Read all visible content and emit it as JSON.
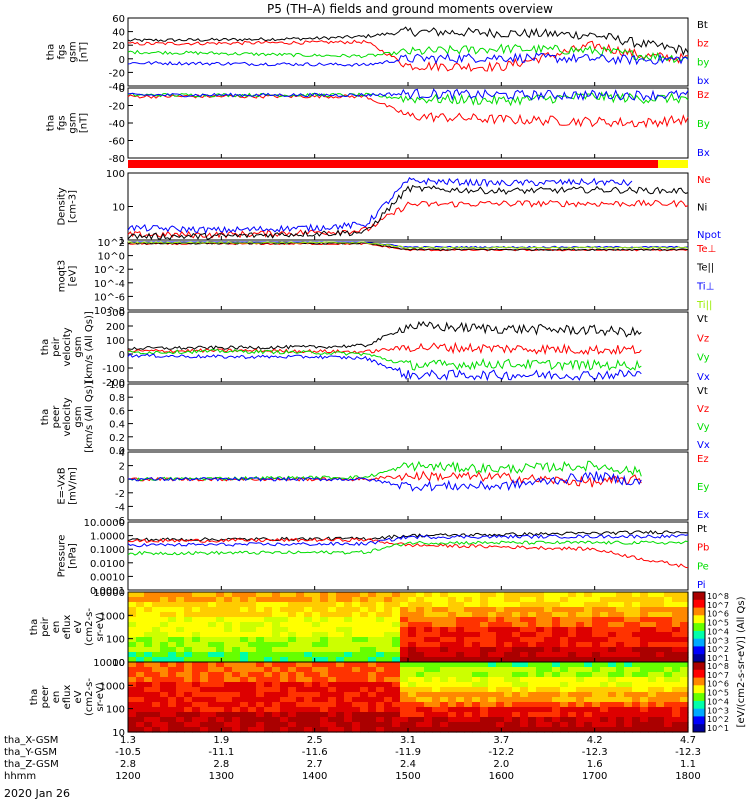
{
  "figure": {
    "title": "P5 (TH–A) fields and ground moments overview",
    "date": "2020 Jan 26"
  },
  "colors": {
    "black": "#000000",
    "red": "#ff0000",
    "green": "#00dd00",
    "blue": "#0000ff",
    "yellow": "#ffff00",
    "lightgreen": "#99ee00",
    "bar_red": "#ff0000",
    "bar_yellow": "#ffff00"
  },
  "chart_data": [
    {
      "type": "line",
      "id": "fgs",
      "ylabel": [
        "tha",
        "fgs",
        "gsm",
        "[nT]"
      ],
      "ylim": [
        -40,
        60
      ],
      "yticks": [
        "60",
        "40",
        "20",
        "0",
        "-20",
        "-40"
      ],
      "series": [
        {
          "name": "Bt",
          "color": "black",
          "x": [
            1200,
            1300,
            1400,
            1440,
            1455,
            1500,
            1600,
            1700,
            1750,
            1800
          ],
          "y": [
            27,
            28,
            30,
            32,
            33,
            40,
            38,
            35,
            22,
            12
          ]
        },
        {
          "name": "bz",
          "color": "red",
          "x": [
            1200,
            1300,
            1400,
            1455,
            1500,
            1600,
            1700,
            1750,
            1800
          ],
          "y": [
            22,
            23,
            24,
            25,
            -10,
            -12,
            20,
            5,
            0
          ]
        },
        {
          "name": "by",
          "color": "green",
          "x": [
            1200,
            1300,
            1400,
            1455,
            1500,
            1600,
            1700,
            1750,
            1800
          ],
          "y": [
            10,
            8,
            5,
            4,
            10,
            15,
            12,
            5,
            0
          ]
        },
        {
          "name": "bx",
          "color": "blue",
          "x": [
            1200,
            1300,
            1400,
            1455,
            1500,
            1600,
            1700,
            1750,
            1800
          ],
          "y": [
            -6,
            -7,
            -8,
            -9,
            0,
            2,
            0,
            -2,
            0
          ]
        }
      ]
    },
    {
      "type": "line",
      "id": "fgs_gsm",
      "ylabel": [
        "tha",
        "fgs",
        "gsm",
        "[nT]"
      ],
      "ylim": [
        -90,
        10
      ],
      "yticks": [
        "0",
        "-20",
        "-40",
        "-60",
        "-80"
      ],
      "series": [
        {
          "name": "Bz",
          "color": "red",
          "x": [
            1200,
            1300,
            1400,
            1455,
            1500,
            1600,
            1700,
            1750,
            1800
          ],
          "y": [
            -2,
            -2,
            -2,
            -2,
            -30,
            -35,
            -38,
            -40,
            -35
          ]
        },
        {
          "name": "By",
          "color": "green",
          "x": [
            1200,
            1300,
            1400,
            1455,
            1500,
            1600,
            1700,
            1750,
            1800
          ],
          "y": [
            0,
            0,
            0,
            0,
            -5,
            -8,
            -2,
            -5,
            -5
          ]
        },
        {
          "name": "Bx",
          "color": "blue",
          "x": [
            1200,
            1300,
            1400,
            1455,
            1500,
            1600,
            1700,
            1750,
            1800
          ],
          "y": [
            0,
            0,
            0,
            0,
            2,
            0,
            0,
            0,
            0
          ]
        }
      ]
    },
    {
      "type": "line",
      "id": "density",
      "ylabel": [
        "Density",
        "[cm-3]"
      ],
      "yscale": "log",
      "ylim": [
        0.5,
        200
      ],
      "yticks": [
        "100",
        "10",
        "1"
      ],
      "series": [
        {
          "name": "Ne",
          "color": "red",
          "x": [
            1200,
            1300,
            1400,
            1455,
            1500,
            1600,
            1700,
            1800
          ],
          "y": [
            0.8,
            0.8,
            1.0,
            1.2,
            12,
            13,
            13,
            13
          ]
        },
        {
          "name": "Ni",
          "color": "black",
          "x": [
            1200,
            1300,
            1400,
            1455,
            1500,
            1600,
            1700,
            1800
          ],
          "y": [
            0.7,
            0.7,
            0.9,
            1.0,
            50,
            40,
            45,
            40
          ]
        },
        {
          "name": "Npot",
          "color": "blue",
          "x": [
            1200,
            1300,
            1400,
            1455,
            1500,
            1600,
            1700,
            1740
          ],
          "y": [
            1.5,
            1.2,
            1.5,
            2,
            100,
            80,
            90,
            80
          ]
        }
      ]
    },
    {
      "type": "line",
      "id": "temperature",
      "ylabel": [
        "moqt3",
        "[eV]"
      ],
      "yscale": "log",
      "ylim": [
        1e-08,
        1000.0
      ],
      "yticks": [
        "10^2",
        "10^0",
        "10^-2",
        "10^-4",
        "10^-6",
        "10^-8"
      ],
      "series": [
        {
          "name": "Te⊥",
          "color": "red",
          "x": [
            1200,
            1455,
            1500,
            1800
          ],
          "y": [
            500,
            500,
            50,
            50
          ]
        },
        {
          "name": "Te||",
          "color": "black",
          "x": [
            1200,
            1455,
            1500,
            1800
          ],
          "y": [
            600,
            600,
            60,
            60
          ]
        },
        {
          "name": "Ti⊥",
          "color": "blue",
          "x": [
            1200,
            1455,
            1500,
            1800
          ],
          "y": [
            1000,
            1000,
            150,
            150
          ]
        },
        {
          "name": "Ti||",
          "color": "lightgreen",
          "x": [
            1200,
            1455,
            1500,
            1800
          ],
          "y": [
            800,
            800,
            120,
            120
          ]
        }
      ]
    },
    {
      "type": "line",
      "id": "velocity_peir",
      "ylabel": [
        "tha",
        "peir",
        "velocity",
        "gsm",
        "[km/s (All Qs)]"
      ],
      "ylim": [
        -200,
        300
      ],
      "yticks": [
        "300",
        "200",
        "100",
        "0",
        "-100",
        "-200"
      ],
      "series": [
        {
          "name": "Vt",
          "color": "black",
          "x": [
            1200,
            1300,
            1400,
            1455,
            1500,
            1600,
            1700,
            1750
          ],
          "y": [
            40,
            45,
            50,
            60,
            200,
            180,
            170,
            150
          ]
        },
        {
          "name": "Vz",
          "color": "red",
          "x": [
            1200,
            1300,
            1400,
            1455,
            1500,
            1600,
            1700,
            1750
          ],
          "y": [
            20,
            25,
            20,
            15,
            50,
            40,
            30,
            30
          ]
        },
        {
          "name": "Vy",
          "color": "green",
          "x": [
            1200,
            1300,
            1400,
            1455,
            1500,
            1600,
            1700,
            1750
          ],
          "y": [
            10,
            20,
            10,
            0,
            -80,
            -70,
            -80,
            -80
          ]
        },
        {
          "name": "Vx",
          "color": "blue",
          "x": [
            1200,
            1300,
            1400,
            1455,
            1500,
            1600,
            1700,
            1750
          ],
          "y": [
            -10,
            -20,
            -20,
            -30,
            -150,
            -150,
            -150,
            -140
          ]
        }
      ]
    },
    {
      "type": "line",
      "id": "velocity_peer",
      "ylabel": [
        "tha",
        "peer",
        "velocity",
        "gsm",
        "[km/s (All Qs)]"
      ],
      "ylim": [
        0,
        1
      ],
      "yticks": [
        "1.0",
        "0.8",
        "0.6",
        "0.4",
        "0.2",
        "0.0"
      ],
      "legend": [
        "Vt",
        "Vz",
        "Vy",
        "Vx"
      ],
      "series": []
    },
    {
      "type": "line",
      "id": "efield",
      "ylabel": [
        "E=-VxB",
        "[mV/m]"
      ],
      "ylim": [
        -6,
        4
      ],
      "yticks": [
        "4",
        "2",
        "0",
        "-2",
        "-4",
        "-6"
      ],
      "series": [
        {
          "name": "Ez",
          "color": "red",
          "x": [
            1200,
            1455,
            1500,
            1600,
            1700,
            1750
          ],
          "y": [
            0,
            0,
            0.5,
            0.3,
            -0.5,
            0
          ]
        },
        {
          "name": "Ey",
          "color": "green",
          "x": [
            1200,
            1455,
            1500,
            1600,
            1700,
            1750
          ],
          "y": [
            0,
            0.3,
            2,
            1.5,
            2,
            1
          ]
        },
        {
          "name": "Ex",
          "color": "blue",
          "x": [
            1200,
            1455,
            1500,
            1600,
            1700,
            1750
          ],
          "y": [
            0,
            0,
            -1,
            -1,
            0.5,
            -0.5
          ]
        }
      ]
    },
    {
      "type": "line",
      "id": "pressure",
      "ylabel": [
        "Pressure",
        "[nPa]"
      ],
      "yscale": "log",
      "ylim": [
        0.0001,
        10
      ],
      "yticks": [
        "10.0000",
        "1.0000",
        "0.1000",
        "0.0100",
        "0.0010",
        "0.0001"
      ],
      "series": [
        {
          "name": "Pt",
          "color": "black",
          "x": [
            1200,
            1455,
            1500,
            1600,
            1700,
            1800
          ],
          "y": [
            0.5,
            0.6,
            1.0,
            1.2,
            1.5,
            2.0
          ]
        },
        {
          "name": "Pb",
          "color": "red",
          "x": [
            1200,
            1455,
            1500,
            1600,
            1700,
            1750,
            1800
          ],
          "y": [
            0.4,
            0.5,
            0.2,
            0.15,
            0.1,
            0.02,
            0.005
          ]
        },
        {
          "name": "Pe",
          "color": "green",
          "x": [
            1200,
            1455,
            1500,
            1800
          ],
          "y": [
            0.05,
            0.06,
            0.3,
            0.3
          ]
        },
        {
          "name": "Pi",
          "color": "blue",
          "x": [
            1200,
            1455,
            1500,
            1800
          ],
          "y": [
            0.2,
            0.25,
            0.8,
            0.9
          ]
        }
      ]
    },
    {
      "type": "heatmap",
      "id": "peir_spectrogram",
      "ylabel": [
        "tha",
        "peir",
        "en",
        "eflux",
        "eV",
        "(cm2-s-",
        "sr-eV)"
      ],
      "yscale": "log",
      "ylim": [
        5,
        30000
      ],
      "yticks": [
        "10000",
        "1000",
        "100",
        "10"
      ]
    },
    {
      "type": "heatmap",
      "id": "peer_spectrogram",
      "ylabel": [
        "tha",
        "peer",
        "en",
        "eflux",
        "eV",
        "(cm2-s-",
        "sr-eV)"
      ],
      "yscale": "log",
      "ylim": [
        5,
        30000
      ],
      "yticks": [
        "10000",
        "1000",
        "100",
        "10"
      ]
    }
  ],
  "colorbar": {
    "label": "[eV/(cm2-s-sr-eV)] (All Qs)",
    "ticks": [
      "10^8",
      "10^7",
      "10^6",
      "10^5",
      "10^4",
      "10^3",
      "10^2",
      "10^1"
    ],
    "ticks2": [
      "10^8",
      "10^7",
      "10^6",
      "10^5",
      "10^4",
      "10^3",
      "10^2",
      "10^1"
    ]
  },
  "xaxis": {
    "xlim": [
      1200,
      1800
    ],
    "rows": [
      {
        "label": "tha_X-GSM",
        "values": [
          "1.3",
          "1.9",
          "2.5",
          "3.1",
          "3.7",
          "4.2",
          "4.7"
        ]
      },
      {
        "label": "tha_Y-GSM",
        "values": [
          "-10.5",
          "-11.1",
          "-11.6",
          "-11.9",
          "-12.2",
          "-12.3",
          "-12.3"
        ]
      },
      {
        "label": "tha_Z-GSM",
        "values": [
          "2.8",
          "2.8",
          "2.7",
          "2.4",
          "2.0",
          "1.6",
          "1.1"
        ]
      },
      {
        "label": "hhmm",
        "values": [
          "1200",
          "1300",
          "1400",
          "1500",
          "1600",
          "1700",
          "1800"
        ]
      }
    ]
  }
}
